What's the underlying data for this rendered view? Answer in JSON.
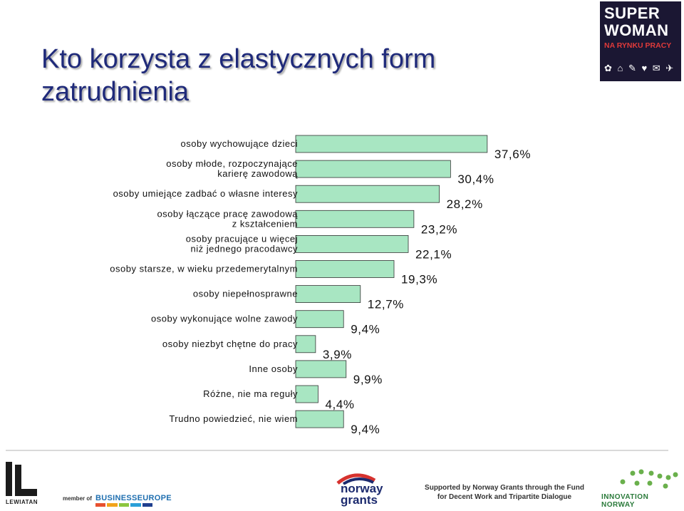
{
  "title": "Kto korzysta z elastycznych form zatrudnienia",
  "badge": {
    "line1": "SUPER",
    "line2": "WOMAN",
    "line3": "NA RYNKU PRACY",
    "icons": "✿ ⌂ ✎ ♥ ✉ ✈"
  },
  "colors": {
    "bar_fill": "#a8e6c2",
    "bar_stroke": "#333333",
    "title": "#1f2a7a"
  },
  "chart_data": {
    "type": "bar",
    "orientation": "horizontal",
    "categories": [
      [
        "osoby wychowujące dzieci"
      ],
      [
        "osoby młode, rozpoczynające",
        "karierę zawodową"
      ],
      [
        "osoby umiejące zadbać o własne interesy"
      ],
      [
        "osoby łączące pracę zawodową",
        "z kształceniem"
      ],
      [
        "osoby pracujące u więcej",
        "niż jednego pracodawcy"
      ],
      [
        "osoby starsze, w wieku przedemerytalnym"
      ],
      [
        "osoby niepełnosprawne"
      ],
      [
        "osoby wykonujące wolne zawody"
      ],
      [
        "osoby  niezbyt chętne do pracy"
      ],
      [
        "Inne osoby"
      ],
      [
        "Różne, nie ma reguły"
      ],
      [
        "Trudno powiedzieć, nie wiem"
      ]
    ],
    "values": [
      37.6,
      30.4,
      28.2,
      23.2,
      22.1,
      19.3,
      12.7,
      9.4,
      3.9,
      9.9,
      4.4,
      9.4
    ],
    "value_labels": [
      "37,6%",
      "30,4%",
      "28,2%",
      "23,2%",
      "22,1%",
      "19,3%",
      "12,7%",
      "9,4%",
      "3,9%",
      "9,9%",
      "4,4%",
      "9,4%"
    ],
    "unit": "%",
    "grid": false,
    "legend": false
  },
  "footer": {
    "lewiatan": "LEWIATAN",
    "member_of": "member of",
    "businesseurope": "BUSINESSEUROPE",
    "norway_line1": "norway",
    "norway_line2": "grants",
    "supported_line1": "Supported by Norway Grants through the Fund",
    "supported_line2": "for Decent Work and Tripartite Dialogue",
    "innovation_line1": "INNOVATION",
    "innovation_line2": "NORWAY"
  }
}
